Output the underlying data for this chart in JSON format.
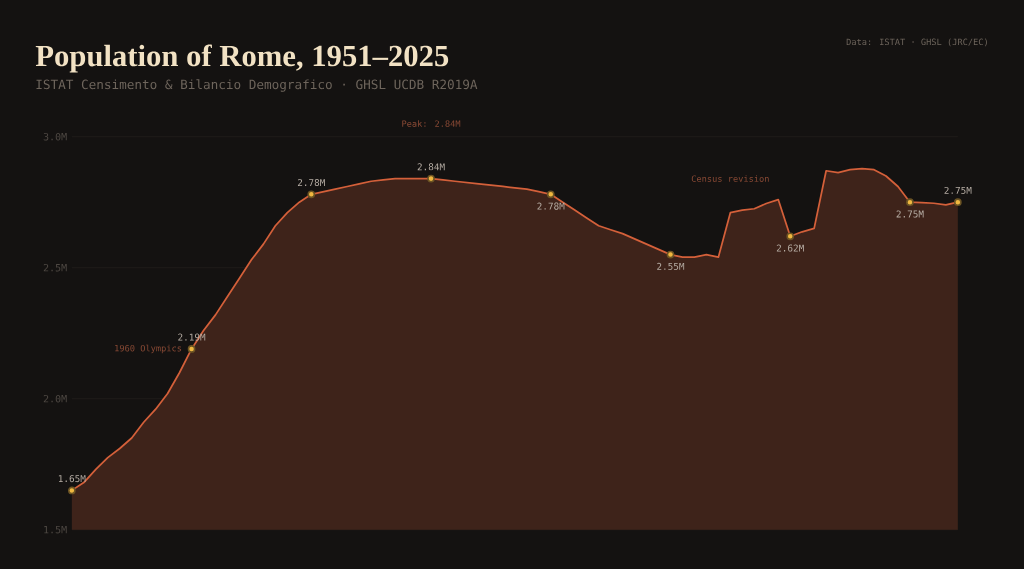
{
  "chart_data": {
    "type": "area",
    "title": "Population of Rome, 1951–2025",
    "subtitle": "ISTAT Censimento & Bilancio Demografico · GHSL UCDB R2019A",
    "categories": [
      null,
      null,
      null,
      null,
      null,
      null,
      null,
      null,
      null,
      null,
      null,
      null,
      null,
      null,
      null,
      null,
      null,
      null,
      null,
      null,
      null,
      null,
      null,
      null,
      null,
      null,
      null,
      null,
      null,
      null,
      null,
      null,
      null,
      null,
      null,
      null,
      null,
      null,
      null,
      null,
      null,
      null,
      null,
      null,
      null,
      null,
      null,
      null,
      null,
      null,
      null,
      null,
      null,
      null,
      null,
      null,
      null,
      null,
      null,
      null,
      null,
      null,
      null,
      null,
      null,
      null,
      null,
      null,
      null,
      null,
      null,
      null,
      null,
      null,
      null
    ],
    "series": [
      {
        "color": "#d4603a",
        "values": [
          1.65,
          1.68,
          1.73,
          1.775,
          1.81,
          1.85,
          1.91,
          1.96,
          2.02,
          2.1,
          2.19,
          2.26,
          2.32,
          2.39,
          2.46,
          2.53,
          2.59,
          2.66,
          2.71,
          2.75,
          2.78,
          2.79,
          2.8,
          2.81,
          2.82,
          2.83,
          2.835,
          2.84,
          2.84,
          2.84,
          2.84,
          2.835,
          2.83,
          2.825,
          2.82,
          2.815,
          2.81,
          2.805,
          2.8,
          2.79,
          2.78,
          2.75,
          2.72,
          2.69,
          2.66,
          2.645,
          2.63,
          2.61,
          2.59,
          2.57,
          2.55,
          2.54,
          2.54,
          2.55,
          2.54,
          2.71,
          2.72,
          2.725,
          2.745,
          2.76,
          2.62,
          2.637,
          2.65,
          2.87,
          2.863,
          2.874,
          2.878,
          2.874,
          2.85,
          2.81,
          2.75,
          2.748,
          2.746,
          2.74,
          2.75
        ],
        "value_labels": [
          "1.65M",
          null,
          null,
          null,
          null,
          null,
          null,
          null,
          null,
          null,
          "2.19M",
          null,
          null,
          null,
          null,
          null,
          null,
          null,
          null,
          null,
          "2.78M",
          null,
          null,
          null,
          null,
          null,
          null,
          null,
          null,
          null,
          "2.84M",
          null,
          null,
          null,
          null,
          null,
          null,
          null,
          null,
          null,
          "2.78M",
          null,
          null,
          null,
          null,
          null,
          null,
          null,
          null,
          null,
          "2.55M",
          null,
          null,
          null,
          null,
          null,
          null,
          null,
          null,
          null,
          "2.62M",
          null,
          null,
          null,
          null,
          null,
          null,
          null,
          null,
          null,
          "2.75M",
          null,
          null,
          null,
          "2.75M"
        ]
      }
    ],
    "ylim": [
      1.5,
      3.0
    ],
    "yticks": [
      {
        "value": 1.5,
        "label": "1.5M"
      },
      {
        "value": 2.0,
        "label": "2.0M"
      },
      {
        "value": 2.5,
        "label": "2.5M"
      },
      {
        "value": 3.0,
        "label": "3.0M"
      }
    ],
    "grid": "y",
    "tick_labels": "y",
    "annotations": [
      "Peak: 2.84M",
      "1960 Olympics",
      "Census revision",
      "Data: ISTAT · GHSL (JRC/EC)"
    ]
  }
}
